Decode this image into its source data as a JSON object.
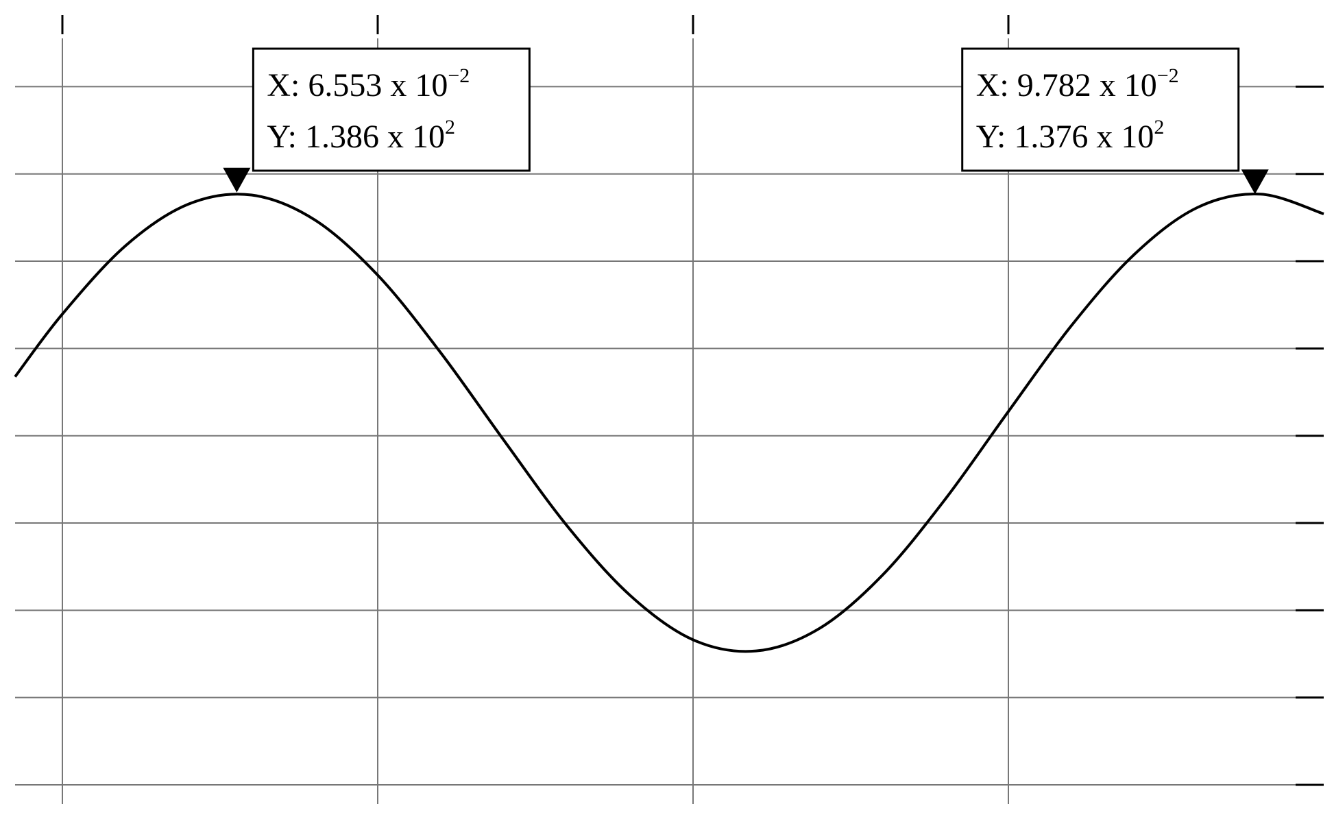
{
  "chart_data": {
    "type": "line",
    "x": [
      0.0585,
      0.06,
      0.062,
      0.064,
      0.066,
      0.068,
      0.07,
      0.072,
      0.074,
      0.076,
      0.078,
      0.08,
      0.082,
      0.084,
      0.086,
      0.088,
      0.09,
      0.092,
      0.094,
      0.096,
      0.098,
      0.1
    ],
    "series": [
      {
        "color": "#000000",
        "values": [
          33.8,
          69.7,
          108.8,
          132.7,
          137.9,
          123.7,
          92.0,
          47.5,
          -2.6,
          -51.5,
          -91.4,
          -116.9,
          -123.3,
          -110.5,
          -80.0,
          -36.3,
          13.9,
          63.1,
          104.0,
          130.8,
          138.4,
          127.1
        ]
      }
    ],
    "xlim": [
      0.0585,
      0.1
    ],
    "xticks": [
      0.06,
      0.07,
      0.08,
      0.09
    ],
    "ylim": [
      -211,
      241
    ],
    "yticks": [
      -200,
      -150,
      -100,
      -50,
      0,
      50,
      100,
      150,
      200
    ],
    "grid": true,
    "markers": [
      {
        "x": 0.06553,
        "y": 138.6,
        "x_text": "X: 6.553 x 10",
        "x_exp": "−2",
        "y_text": "Y: 1.386 x 10",
        "y_exp": "2"
      },
      {
        "x": 0.09782,
        "y": 137.6,
        "x_text": "X: 9.782 x 10",
        "x_exp": "−2",
        "y_text": "Y: 1.376 x 10",
        "y_exp": "2"
      }
    ]
  }
}
